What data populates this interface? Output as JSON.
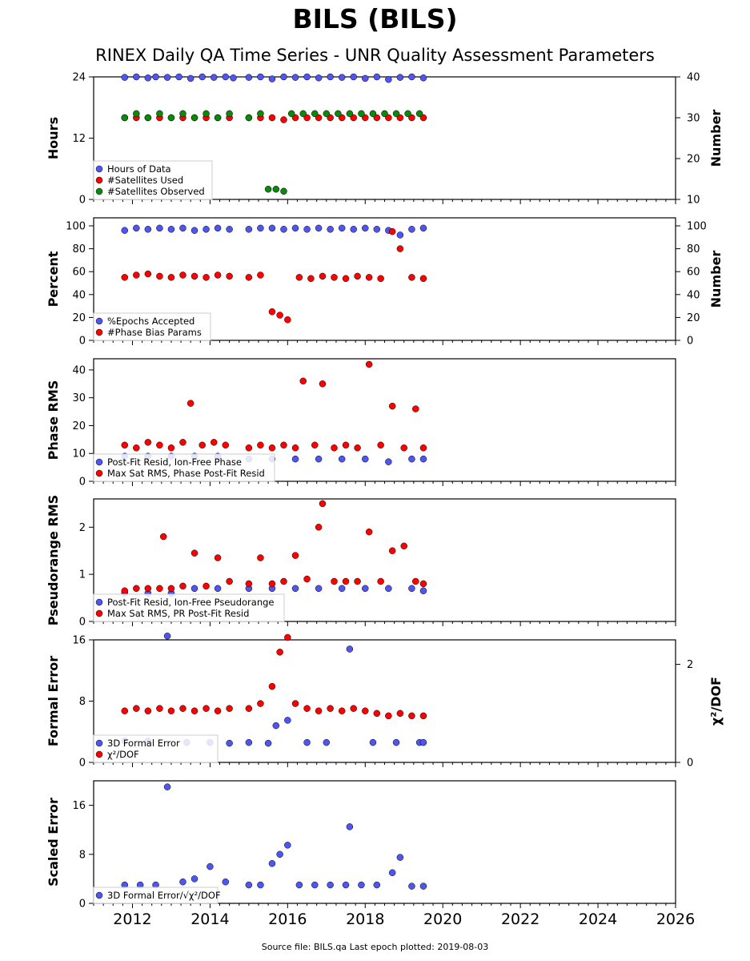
{
  "title": "BILS (BILS)",
  "subtitle": "RINEX Daily QA Time Series - UNR Quality Assessment Parameters",
  "footer": "Source file: BILS.qa Last epoch plotted: 2019-08-03",
  "colors": {
    "blue": "#4f55f0",
    "red": "#ff0000",
    "green": "#0a8a0a"
  },
  "chart_data": [
    {
      "type": "scatter",
      "ylabel": "Hours",
      "y2label": "Number",
      "xlim": [
        2011,
        2026
      ],
      "ylim": [
        0,
        24
      ],
      "yticks": [
        "0",
        "12",
        "24"
      ],
      "y2lim": [
        10,
        40
      ],
      "y2ticks": [
        "10",
        "20",
        "30",
        "40"
      ],
      "legend": [
        "Hours of Data",
        "#Satellites Used",
        "#Satellites Observed"
      ],
      "series": [
        {
          "name": "Hours of Data",
          "axis": "left",
          "color": "blue",
          "x": [
            2011.8,
            2012.1,
            2012.4,
            2012.6,
            2012.9,
            2013.2,
            2013.5,
            2013.8,
            2014.1,
            2014.4,
            2014.6,
            2015.0,
            2015.3,
            2015.6,
            2015.9,
            2016.2,
            2016.5,
            2016.8,
            2017.1,
            2017.4,
            2017.7,
            2018.0,
            2018.3,
            2018.6,
            2018.9,
            2019.2,
            2019.5
          ],
          "y": [
            23.9,
            24.0,
            23.8,
            24.0,
            23.9,
            24.0,
            23.7,
            24.0,
            23.9,
            24.0,
            23.8,
            23.9,
            24.0,
            23.6,
            24.0,
            23.9,
            24.0,
            23.8,
            24.0,
            23.9,
            24.0,
            23.7,
            24.0,
            23.5,
            23.9,
            24.0,
            23.8
          ]
        },
        {
          "name": "#Satellites Used",
          "axis": "right",
          "color": "red",
          "x": [
            2011.8,
            2012.1,
            2012.4,
            2012.7,
            2013.0,
            2013.3,
            2013.6,
            2013.9,
            2014.2,
            2014.5,
            2015.0,
            2015.3,
            2015.6,
            2015.9,
            2016.2,
            2016.5,
            2016.8,
            2017.1,
            2017.4,
            2017.7,
            2018.0,
            2018.3,
            2018.6,
            2018.9,
            2019.2,
            2019.5
          ],
          "y": [
            30,
            30,
            30,
            30,
            30,
            30,
            30,
            30,
            30,
            30,
            30,
            30,
            30,
            29.5,
            30,
            30,
            30,
            30,
            30,
            30,
            30,
            30,
            30,
            30,
            30,
            30
          ]
        },
        {
          "name": "#Satellites Observed",
          "axis": "right",
          "color": "green",
          "x": [
            2011.8,
            2012.1,
            2012.4,
            2012.7,
            2013.0,
            2013.3,
            2013.6,
            2013.9,
            2014.2,
            2014.5,
            2015.0,
            2015.3,
            2015.5,
            2015.7,
            2015.9,
            2016.1,
            2016.4,
            2016.7,
            2017.0,
            2017.3,
            2017.6,
            2017.9,
            2018.2,
            2018.5,
            2018.8,
            2019.1,
            2019.4
          ],
          "y": [
            30,
            31,
            30,
            31,
            30,
            31,
            30,
            31,
            30,
            31,
            30,
            31,
            12.5,
            12.5,
            12.0,
            31,
            31,
            31,
            31,
            31,
            31,
            31,
            31,
            31,
            31,
            31,
            31
          ]
        }
      ]
    },
    {
      "type": "scatter",
      "ylabel": "Percent",
      "y2label": "Number",
      "xlim": [
        2011,
        2026
      ],
      "ylim": [
        0,
        107
      ],
      "yticks": [
        "0",
        "20",
        "40",
        "60",
        "80",
        "100"
      ],
      "y2lim": [
        0,
        107
      ],
      "y2ticks": [
        "0",
        "20",
        "40",
        "60",
        "80",
        "100"
      ],
      "legend": [
        "%Epochs Accepted",
        "#Phase Bias Params"
      ],
      "series": [
        {
          "name": "%Epochs Accepted",
          "axis": "left",
          "color": "blue",
          "x": [
            2011.8,
            2012.1,
            2012.4,
            2012.7,
            2013.0,
            2013.3,
            2013.6,
            2013.9,
            2014.2,
            2014.5,
            2015.0,
            2015.3,
            2015.6,
            2015.9,
            2016.2,
            2016.5,
            2016.8,
            2017.1,
            2017.4,
            2017.7,
            2018.0,
            2018.3,
            2018.6,
            2018.9,
            2019.2,
            2019.5
          ],
          "y": [
            96,
            98,
            97,
            98,
            97,
            98,
            96,
            97,
            98,
            97,
            97,
            98,
            98,
            97,
            98,
            97,
            98,
            97,
            98,
            97,
            98,
            97,
            96,
            92,
            97,
            98
          ]
        },
        {
          "name": "#Phase Bias Params",
          "axis": "right",
          "color": "red",
          "x": [
            2011.8,
            2012.1,
            2012.4,
            2012.7,
            2013.0,
            2013.3,
            2013.6,
            2013.9,
            2014.2,
            2014.5,
            2015.0,
            2015.3,
            2015.6,
            2015.8,
            2016.0,
            2016.3,
            2016.6,
            2016.9,
            2017.2,
            2017.5,
            2017.8,
            2018.1,
            2018.4,
            2018.7,
            2018.9,
            2019.2,
            2019.5
          ],
          "y": [
            55,
            57,
            58,
            56,
            55,
            57,
            56,
            55,
            57,
            56,
            55,
            57,
            25,
            22,
            18,
            55,
            54,
            56,
            55,
            54,
            56,
            55,
            54,
            95,
            80,
            55,
            54
          ]
        }
      ]
    },
    {
      "type": "scatter",
      "ylabel": "Phase RMS",
      "xlim": [
        2011,
        2026
      ],
      "ylim": [
        0,
        44
      ],
      "yticks": [
        "0",
        "10",
        "20",
        "30",
        "40"
      ],
      "legend": [
        "Post-Fit Resid, Ion-Free Phase",
        "Max Sat RMS, Phase Post-Fit Resid"
      ],
      "series": [
        {
          "name": "Post-Fit Resid, Ion-Free Phase",
          "axis": "left",
          "color": "blue",
          "x": [
            2011.8,
            2012.4,
            2013.0,
            2013.6,
            2014.2,
            2015.0,
            2015.6,
            2016.2,
            2016.8,
            2017.4,
            2018.0,
            2018.6,
            2019.2,
            2019.5
          ],
          "y": [
            9,
            9,
            9,
            9,
            9,
            8,
            8,
            8,
            8,
            8,
            8,
            7,
            8,
            8
          ]
        },
        {
          "name": "Max Sat RMS, Phase Post-Fit Resid",
          "axis": "left",
          "color": "red",
          "x": [
            2011.8,
            2012.1,
            2012.4,
            2012.7,
            2013.0,
            2013.3,
            2013.5,
            2013.8,
            2014.1,
            2014.4,
            2015.0,
            2015.3,
            2015.6,
            2015.9,
            2016.2,
            2016.4,
            2016.7,
            2016.9,
            2017.2,
            2017.5,
            2017.8,
            2018.1,
            2018.4,
            2018.7,
            2019.0,
            2019.3,
            2019.5
          ],
          "y": [
            13,
            12,
            14,
            13,
            12,
            14,
            28,
            13,
            14,
            13,
            12,
            13,
            12,
            13,
            12,
            36,
            13,
            35,
            12,
            13,
            12,
            42,
            13,
            27,
            12,
            26,
            12
          ]
        }
      ]
    },
    {
      "type": "scatter",
      "ylabel": "Pseudorange RMS",
      "xlim": [
        2011,
        2026
      ],
      "ylim": [
        0,
        2.6
      ],
      "yticks": [
        "0",
        "1",
        "2"
      ],
      "legend": [
        "Post-Fit Resid, Ion-Free Pseudorange",
        "Max Sat RMS, PR Post-Fit Resid"
      ],
      "series": [
        {
          "name": "Post-Fit Resid, Ion-Free Pseudorange",
          "axis": "left",
          "color": "blue",
          "x": [
            2011.8,
            2012.4,
            2013.0,
            2013.6,
            2014.2,
            2015.0,
            2015.6,
            2016.2,
            2016.8,
            2017.4,
            2018.0,
            2018.6,
            2019.2,
            2019.5
          ],
          "y": [
            0.6,
            0.6,
            0.6,
            0.7,
            0.7,
            0.7,
            0.7,
            0.7,
            0.7,
            0.7,
            0.7,
            0.7,
            0.7,
            0.65
          ]
        },
        {
          "name": "Max Sat RMS, PR Post-Fit Resid",
          "axis": "left",
          "color": "red",
          "x": [
            2011.8,
            2012.1,
            2012.4,
            2012.7,
            2012.8,
            2013.0,
            2013.3,
            2013.6,
            2013.9,
            2014.2,
            2014.5,
            2015.0,
            2015.3,
            2015.6,
            2015.9,
            2016.2,
            2016.5,
            2016.8,
            2016.9,
            2017.2,
            2017.5,
            2017.8,
            2018.1,
            2018.4,
            2018.7,
            2019.0,
            2019.3,
            2019.5
          ],
          "y": [
            0.65,
            0.7,
            0.7,
            0.7,
            1.8,
            0.7,
            0.75,
            1.45,
            0.75,
            1.35,
            0.85,
            0.8,
            1.35,
            0.8,
            0.85,
            1.4,
            0.9,
            2.0,
            2.5,
            0.85,
            0.85,
            0.85,
            1.9,
            0.85,
            1.5,
            1.6,
            0.85,
            0.8
          ]
        }
      ]
    },
    {
      "type": "scatter",
      "ylabel": "Formal Error",
      "y2label": "χ²/DOF",
      "xlim": [
        2011,
        2026
      ],
      "ylim": [
        0,
        16
      ],
      "yticks": [
        "0",
        "8",
        "16"
      ],
      "y2lim": [
        0,
        2.5
      ],
      "y2ticks": [
        "0",
        "2"
      ],
      "legend": [
        "3D Formal Error",
        "χ²/DOF"
      ],
      "series": [
        {
          "name": "3D Formal Error",
          "axis": "left",
          "color": "blue",
          "x": [
            2011.8,
            2012.4,
            2012.9,
            2013.4,
            2014.0,
            2014.5,
            2015.0,
            2015.5,
            2015.7,
            2016.0,
            2016.5,
            2017.0,
            2017.6,
            2018.2,
            2018.8,
            2019.4,
            2019.5
          ],
          "y": [
            2.8,
            2.8,
            16.5,
            2.6,
            2.6,
            2.5,
            2.6,
            2.5,
            4.8,
            5.5,
            2.6,
            2.6,
            14.8,
            2.6,
            2.6,
            2.6,
            2.6
          ]
        },
        {
          "name": "χ²/DOF",
          "axis": "right",
          "color": "red",
          "x": [
            2011.8,
            2012.1,
            2012.4,
            2012.7,
            2013.0,
            2013.3,
            2013.6,
            2013.9,
            2014.2,
            2014.5,
            2015.0,
            2015.3,
            2015.6,
            2015.8,
            2016.0,
            2016.2,
            2016.5,
            2016.8,
            2017.1,
            2017.4,
            2017.7,
            2018.0,
            2018.3,
            2018.6,
            2018.9,
            2019.2,
            2019.5
          ],
          "y": [
            1.05,
            1.1,
            1.05,
            1.1,
            1.05,
            1.1,
            1.05,
            1.1,
            1.05,
            1.1,
            1.1,
            1.2,
            1.55,
            2.25,
            2.55,
            1.2,
            1.1,
            1.05,
            1.1,
            1.05,
            1.1,
            1.05,
            1.0,
            0.95,
            1.0,
            0.95,
            0.95
          ]
        }
      ]
    },
    {
      "type": "scatter",
      "ylabel": "Scaled Error",
      "xlim": [
        2011,
        2026
      ],
      "ylim": [
        0,
        20
      ],
      "yticks": [
        "0",
        "8",
        "16"
      ],
      "xticks": [
        "2012",
        "2014",
        "2016",
        "2018",
        "2020",
        "2022",
        "2024",
        "2026"
      ],
      "legend": [
        "3D Formal Error/√χ²/DOF"
      ],
      "series": [
        {
          "name": "3D Formal Error/√χ²/DOF",
          "axis": "left",
          "color": "blue",
          "x": [
            2011.8,
            2012.2,
            2012.6,
            2012.9,
            2013.3,
            2013.6,
            2014.0,
            2014.4,
            2015.0,
            2015.3,
            2015.6,
            2015.8,
            2016.0,
            2016.3,
            2016.7,
            2017.1,
            2017.5,
            2017.6,
            2017.9,
            2018.3,
            2018.7,
            2018.9,
            2019.2,
            2019.5
          ],
          "y": [
            3,
            3,
            3,
            19,
            3.5,
            4,
            6,
            3.5,
            3,
            3,
            6.5,
            8,
            9.5,
            3,
            3,
            3,
            3,
            12.5,
            3,
            3,
            5,
            7.5,
            2.8,
            2.8
          ]
        }
      ]
    }
  ]
}
